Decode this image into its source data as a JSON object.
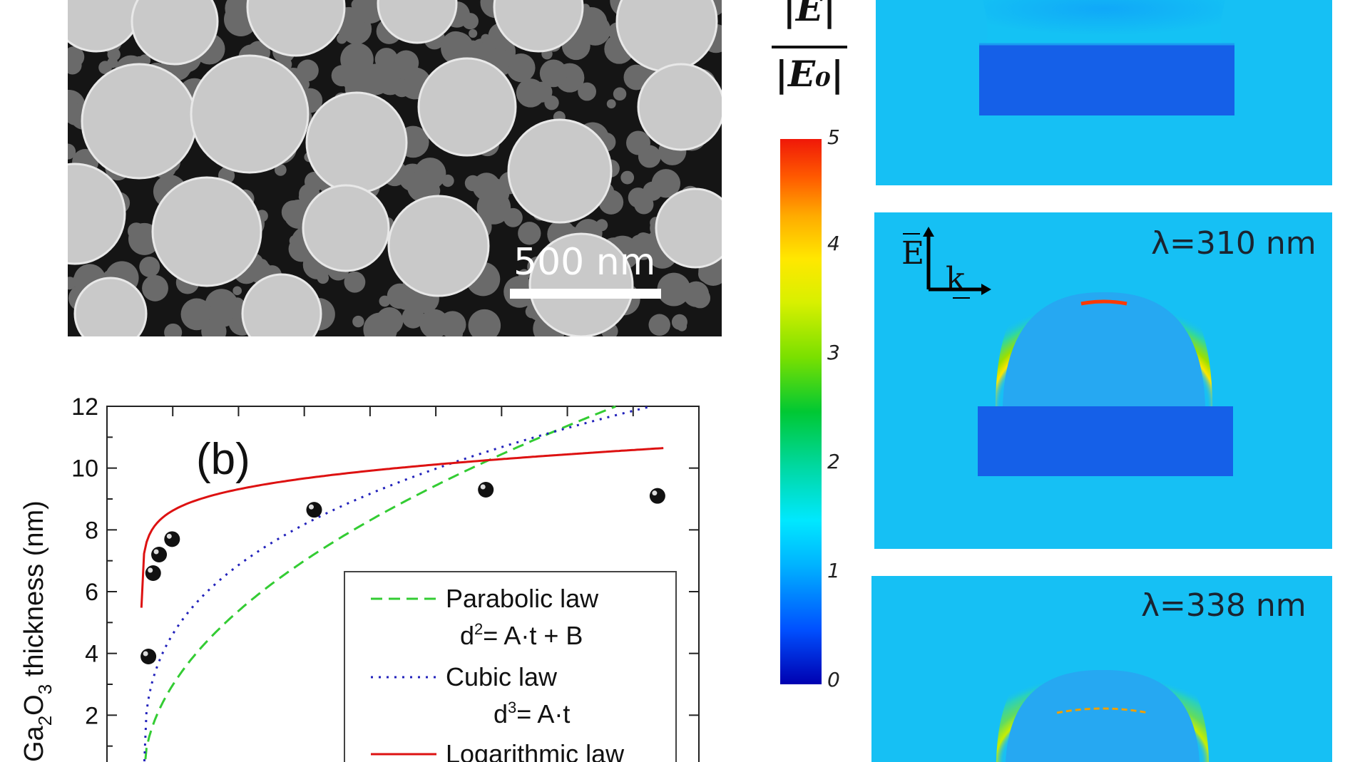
{
  "sem": {
    "scalebar_label": "500 nm"
  },
  "plot": {
    "panel_label": "(b)",
    "ylabel_prefix": "Ga",
    "ylabel_sub1": "2",
    "ylabel_mid": "O",
    "ylabel_sub2": "3",
    "ylabel_suffix": " thickness (nm)",
    "legend": {
      "parabolic": "Parabolic law",
      "parabolic_eq_pre": "d",
      "parabolic_eq_sup": "2",
      "parabolic_eq_post": "= A·t + B",
      "cubic": "Cubic law",
      "cubic_eq_pre": "d",
      "cubic_eq_sup": "3",
      "cubic_eq_post": "= A·t",
      "log": "Logarithmic law"
    }
  },
  "chart_data": {
    "type": "scatter",
    "ylim": [
      0,
      12
    ],
    "xlim": [
      0,
      1
    ],
    "yticks": [
      "2",
      "4",
      "6",
      "8",
      "10",
      "12"
    ],
    "points": [
      {
        "x": 0.07,
        "y": 3.9
      },
      {
        "x": 0.078,
        "y": 6.6
      },
      {
        "x": 0.088,
        "y": 7.2
      },
      {
        "x": 0.11,
        "y": 7.7
      },
      {
        "x": 0.35,
        "y": 8.65
      },
      {
        "x": 0.64,
        "y": 9.3
      },
      {
        "x": 0.93,
        "y": 9.1
      }
    ],
    "series": [
      {
        "name": "Parabolic law",
        "style": "dashed",
        "color": "#33cc33"
      },
      {
        "name": "Cubic law",
        "style": "dotted",
        "color": "#2222bb"
      },
      {
        "name": "Logarithmic law",
        "style": "solid",
        "color": "#dd1111"
      }
    ]
  },
  "colorbar": {
    "title_num": "|E|",
    "title_den": "|E₀|",
    "ticks": [
      "0",
      "1",
      "2",
      "3",
      "4",
      "5"
    ]
  },
  "fields": {
    "panel2_label": "λ=310 nm",
    "panel3_label": "λ=338 nm",
    "e_label": "E",
    "k_label": "k"
  }
}
